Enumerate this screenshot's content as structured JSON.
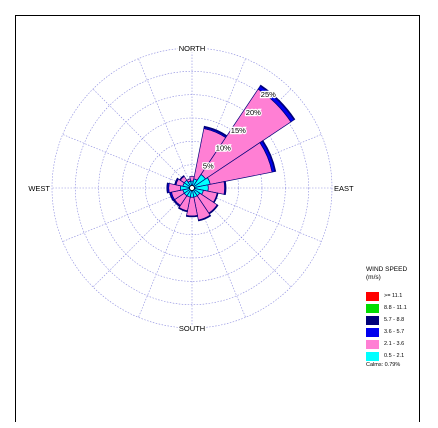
{
  "chart_data": {
    "type": "wind-rose",
    "directions": [
      "N",
      "NNE",
      "NE",
      "ENE",
      "E",
      "ESE",
      "SE",
      "SSE",
      "S",
      "SSW",
      "SW",
      "WSW",
      "W",
      "WNW",
      "NW",
      "NNW"
    ],
    "compass_labels": {
      "north": "NORTH",
      "east": "EAST",
      "south": "SOUTH",
      "west": "WEST"
    },
    "rings": [
      5,
      10,
      15,
      20,
      25
    ],
    "ring_labels": [
      "5%",
      "10%",
      "15%",
      "20%",
      "25%"
    ],
    "rmax": 30,
    "legend_title": "WIND SPEED\n(m/s)",
    "speed_classes": [
      {
        "label": ">= 11.1",
        "color": "#ff0000"
      },
      {
        "label": "8.8 - 11.1",
        "color": "#00dd00"
      },
      {
        "label": "5.7 - 8.8",
        "color": "#00007a"
      },
      {
        "label": "3.6 - 5.7",
        "color": "#0000ee"
      },
      {
        "label": "2.1 - 3.6",
        "color": "#ff7fd4"
      },
      {
        "label": "0.5 - 2.1",
        "color": "#00ffff"
      }
    ],
    "series": [
      {
        "label": "0.5 - 2.1",
        "values": [
          1.5,
          2.0,
          3.5,
          4.0,
          3.5,
          2.5,
          2.0,
          2.0,
          2.0,
          2.0,
          2.0,
          2.0,
          2.5,
          2.0,
          2.0,
          1.5
        ]
      },
      {
        "label": "2.1 - 3.6",
        "values": [
          1.0,
          11.0,
          22.0,
          13.5,
          3.5,
          3.0,
          4.5,
          5.0,
          4.0,
          3.0,
          2.5,
          2.5,
          2.5,
          1.5,
          1.0,
          0.5
        ]
      },
      {
        "label": "3.6 - 5.7",
        "values": [
          0,
          0.3,
          0.8,
          0.6,
          0.2,
          0.1,
          0.1,
          0.1,
          0.1,
          0.1,
          0.2,
          0.3,
          0.3,
          0.2,
          0.1,
          0
        ]
      },
      {
        "label": "5.7 - 8.8",
        "values": [
          0,
          0.2,
          0.2,
          0.2,
          0.1,
          0.1,
          0.1,
          0.1,
          0.1,
          0.1,
          0.1,
          0.1,
          0.1,
          0.1,
          0.1,
          0
        ]
      },
      {
        "label": "8.8 - 11.1",
        "values": [
          0,
          0,
          0,
          0,
          0,
          0,
          0,
          0,
          0,
          0,
          0,
          0,
          0,
          0,
          0,
          0
        ]
      },
      {
        "label": ">= 11.1",
        "values": [
          0,
          0,
          0,
          0,
          0,
          0,
          0,
          0,
          0,
          0,
          0,
          0,
          0,
          0,
          0,
          0
        ]
      }
    ],
    "calms": "Calms: 0.79%"
  }
}
